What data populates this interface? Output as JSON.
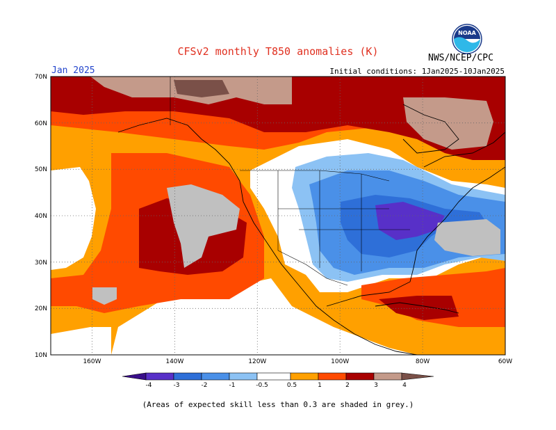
{
  "header": {
    "title": "CFSv2 monthly T850 anomalies (K)",
    "month": "Jan 2025",
    "initial_conditions": "Initial conditions: 1Jan2025-10Jan2025",
    "agency": "NWS/NCEP/CPC",
    "logo_text": "NOAA"
  },
  "map": {
    "lat_labels": [
      "70N",
      "60N",
      "50N",
      "40N",
      "30N",
      "20N",
      "10N"
    ],
    "lon_labels": [
      "160W",
      "140W",
      "120W",
      "100W",
      "80W",
      "60W"
    ],
    "lon_range": [
      -170,
      -60
    ],
    "lat_range": [
      10,
      70
    ]
  },
  "colorbar": {
    "labels": [
      "-4",
      "-3",
      "-2",
      "-1",
      "-0.5",
      "0.5",
      "1",
      "2",
      "3",
      "4"
    ],
    "colors": {
      "lt_m4": "#3a0f8a",
      "m4_m3": "#5830c8",
      "m3_m2": "#2e6fd8",
      "m2_m1": "#4a90e8",
      "m1_m05": "#8cc2f4",
      "neutral": "#ffffff",
      "p05_p1": "#ffa000",
      "p1_p2": "#ff4a00",
      "p2_p3": "#a80000",
      "p3_p4": "#c49a8a",
      "gt_p4": "#7a5048",
      "grey_skill": "#c0c0c0"
    }
  },
  "footnote": "(Areas of expected skill less than 0.3 are shaded in grey.)"
}
